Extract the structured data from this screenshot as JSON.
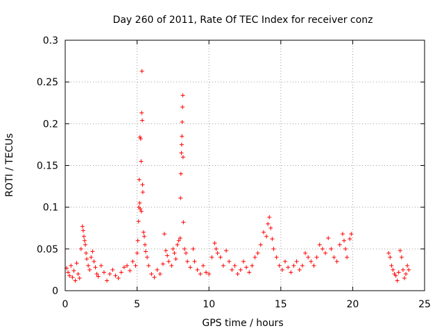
{
  "chart_data": {
    "type": "scatter",
    "title": "Day 260 of 2011, Rate Of TEC Index for receiver conz",
    "xlabel": "GPS time / hours",
    "ylabel": "ROTI / TECUs",
    "xlim": [
      0,
      25
    ],
    "ylim": [
      0,
      0.3
    ],
    "xticks": [
      0,
      5,
      10,
      15,
      20,
      25
    ],
    "xtick_labels": [
      "0",
      "5",
      "10",
      "15",
      "20",
      "25"
    ],
    "yticks": [
      0,
      0.05,
      0.1,
      0.15,
      0.2,
      0.25,
      0.3
    ],
    "ytick_labels": [
      "0",
      "0.05",
      "0.1",
      "0.15",
      "0.2",
      "0.25",
      "0.3"
    ],
    "grid": true,
    "marker": "+",
    "color": "#ff0000",
    "points": [
      [
        0.1,
        0.027
      ],
      [
        0.2,
        0.022
      ],
      [
        0.3,
        0.018
      ],
      [
        0.4,
        0.03
      ],
      [
        0.5,
        0.016
      ],
      [
        0.6,
        0.024
      ],
      [
        0.7,
        0.012
      ],
      [
        0.8,
        0.033
      ],
      [
        0.9,
        0.02
      ],
      [
        1.0,
        0.015
      ],
      [
        1.1,
        0.05
      ],
      [
        1.2,
        0.077
      ],
      [
        1.25,
        0.072
      ],
      [
        1.3,
        0.065
      ],
      [
        1.35,
        0.06
      ],
      [
        1.4,
        0.055
      ],
      [
        1.45,
        0.045
      ],
      [
        1.5,
        0.038
      ],
      [
        1.6,
        0.03
      ],
      [
        1.7,
        0.025
      ],
      [
        1.8,
        0.04
      ],
      [
        1.9,
        0.047
      ],
      [
        2.0,
        0.035
      ],
      [
        2.1,
        0.028
      ],
      [
        2.2,
        0.02
      ],
      [
        2.3,
        0.017
      ],
      [
        2.5,
        0.03
      ],
      [
        2.7,
        0.022
      ],
      [
        2.9,
        0.012
      ],
      [
        3.1,
        0.02
      ],
      [
        3.3,
        0.025
      ],
      [
        3.5,
        0.018
      ],
      [
        3.7,
        0.015
      ],
      [
        3.9,
        0.022
      ],
      [
        4.1,
        0.028
      ],
      [
        4.3,
        0.03
      ],
      [
        4.5,
        0.024
      ],
      [
        4.7,
        0.035
      ],
      [
        4.9,
        0.03
      ],
      [
        5.0,
        0.045
      ],
      [
        5.05,
        0.06
      ],
      [
        5.1,
        0.083
      ],
      [
        5.12,
        0.1
      ],
      [
        5.15,
        0.133
      ],
      [
        5.18,
        0.105
      ],
      [
        5.2,
        0.184
      ],
      [
        5.22,
        0.098
      ],
      [
        5.25,
        0.182
      ],
      [
        5.28,
        0.155
      ],
      [
        5.3,
        0.095
      ],
      [
        5.32,
        0.213
      ],
      [
        5.34,
        0.263
      ],
      [
        5.36,
        0.204
      ],
      [
        5.38,
        0.127
      ],
      [
        5.4,
        0.118
      ],
      [
        5.45,
        0.07
      ],
      [
        5.5,
        0.065
      ],
      [
        5.55,
        0.055
      ],
      [
        5.6,
        0.047
      ],
      [
        5.7,
        0.04
      ],
      [
        5.8,
        0.03
      ],
      [
        6.0,
        0.02
      ],
      [
        6.2,
        0.016
      ],
      [
        6.4,
        0.025
      ],
      [
        6.6,
        0.02
      ],
      [
        6.8,
        0.032
      ],
      [
        6.9,
        0.068
      ],
      [
        7.0,
        0.048
      ],
      [
        7.1,
        0.042
      ],
      [
        7.2,
        0.035
      ],
      [
        7.4,
        0.03
      ],
      [
        7.5,
        0.05
      ],
      [
        7.6,
        0.045
      ],
      [
        7.7,
        0.038
      ],
      [
        7.8,
        0.055
      ],
      [
        7.9,
        0.06
      ],
      [
        8.0,
        0.063
      ],
      [
        8.02,
        0.111
      ],
      [
        8.05,
        0.14
      ],
      [
        8.08,
        0.165
      ],
      [
        8.1,
        0.175
      ],
      [
        8.12,
        0.185
      ],
      [
        8.14,
        0.202
      ],
      [
        8.16,
        0.22
      ],
      [
        8.18,
        0.234
      ],
      [
        8.2,
        0.16
      ],
      [
        8.22,
        0.082
      ],
      [
        8.3,
        0.05
      ],
      [
        8.4,
        0.045
      ],
      [
        8.5,
        0.035
      ],
      [
        8.7,
        0.028
      ],
      [
        8.9,
        0.05
      ],
      [
        9.0,
        0.035
      ],
      [
        9.2,
        0.025
      ],
      [
        9.4,
        0.02
      ],
      [
        9.6,
        0.03
      ],
      [
        9.8,
        0.022
      ],
      [
        10.0,
        0.02
      ],
      [
        10.2,
        0.04
      ],
      [
        10.4,
        0.057
      ],
      [
        10.5,
        0.05
      ],
      [
        10.6,
        0.045
      ],
      [
        10.8,
        0.04
      ],
      [
        11.0,
        0.03
      ],
      [
        11.2,
        0.048
      ],
      [
        11.4,
        0.035
      ],
      [
        11.6,
        0.025
      ],
      [
        11.8,
        0.03
      ],
      [
        12.0,
        0.02
      ],
      [
        12.2,
        0.025
      ],
      [
        12.4,
        0.035
      ],
      [
        12.6,
        0.028
      ],
      [
        12.8,
        0.022
      ],
      [
        13.0,
        0.03
      ],
      [
        13.2,
        0.04
      ],
      [
        13.4,
        0.045
      ],
      [
        13.6,
        0.055
      ],
      [
        13.8,
        0.07
      ],
      [
        14.0,
        0.065
      ],
      [
        14.1,
        0.08
      ],
      [
        14.2,
        0.088
      ],
      [
        14.3,
        0.075
      ],
      [
        14.4,
        0.062
      ],
      [
        14.5,
        0.05
      ],
      [
        14.7,
        0.04
      ],
      [
        14.9,
        0.03
      ],
      [
        15.1,
        0.025
      ],
      [
        15.3,
        0.035
      ],
      [
        15.5,
        0.028
      ],
      [
        15.7,
        0.022
      ],
      [
        15.9,
        0.03
      ],
      [
        16.1,
        0.035
      ],
      [
        16.3,
        0.025
      ],
      [
        16.5,
        0.03
      ],
      [
        16.7,
        0.045
      ],
      [
        16.9,
        0.04
      ],
      [
        17.1,
        0.035
      ],
      [
        17.3,
        0.03
      ],
      [
        17.5,
        0.04
      ],
      [
        17.7,
        0.055
      ],
      [
        17.9,
        0.05
      ],
      [
        18.1,
        0.045
      ],
      [
        18.3,
        0.063
      ],
      [
        18.5,
        0.05
      ],
      [
        18.7,
        0.04
      ],
      [
        18.9,
        0.035
      ],
      [
        19.1,
        0.055
      ],
      [
        19.3,
        0.068
      ],
      [
        19.4,
        0.06
      ],
      [
        19.5,
        0.05
      ],
      [
        19.6,
        0.04
      ],
      [
        19.8,
        0.062
      ],
      [
        19.9,
        0.068
      ],
      [
        22.5,
        0.045
      ],
      [
        22.6,
        0.04
      ],
      [
        22.7,
        0.03
      ],
      [
        22.8,
        0.025
      ],
      [
        22.9,
        0.02
      ],
      [
        23.0,
        0.018
      ],
      [
        23.1,
        0.012
      ],
      [
        23.2,
        0.022
      ],
      [
        23.3,
        0.048
      ],
      [
        23.4,
        0.04
      ],
      [
        23.5,
        0.025
      ],
      [
        23.6,
        0.015
      ],
      [
        23.7,
        0.02
      ],
      [
        23.8,
        0.03
      ],
      [
        23.9,
        0.025
      ]
    ]
  }
}
